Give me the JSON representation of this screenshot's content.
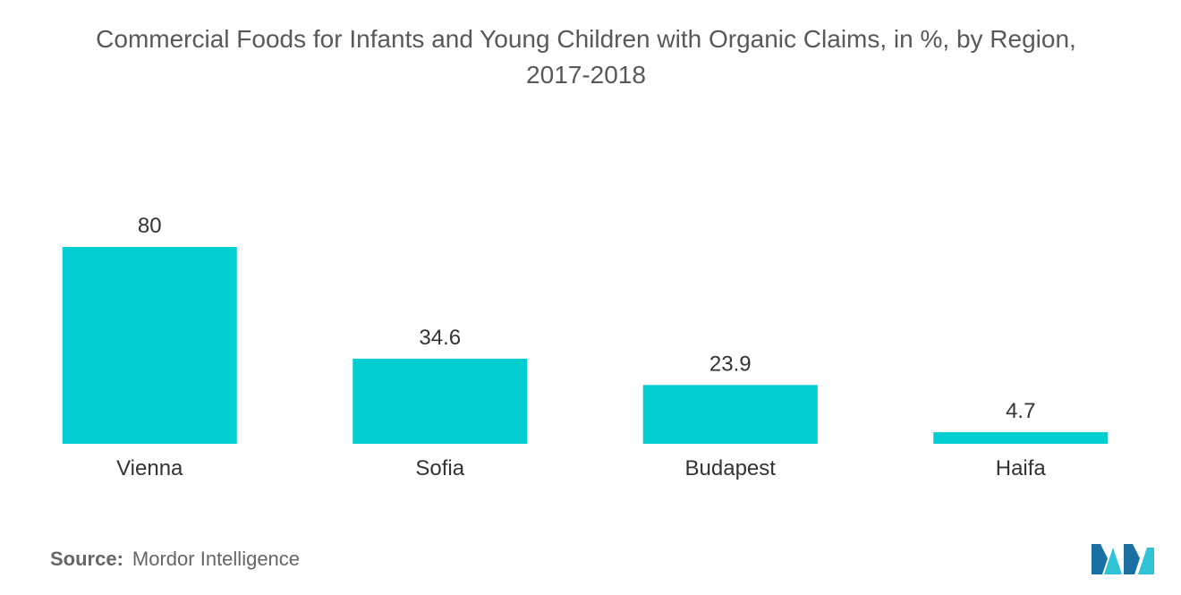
{
  "chart_title_line1": "Commercial Foods for Infants and Young Children with Organic Claims, in %, by Region,",
  "chart_title_line2": "2017-2018",
  "source_label": "Source:",
  "source_value": "Mordor Intelligence",
  "colors": {
    "bar": "#00CED1",
    "logo_dark": "#1A6FA3",
    "logo_light": "#2EC4D6"
  },
  "logo_icon": "mordor-intelligence-logo-icon",
  "chart_data": {
    "type": "bar",
    "categories": [
      "Vienna",
      "Sofia",
      "Budapest",
      "Haifa"
    ],
    "values": [
      80,
      34.6,
      23.9,
      4.7
    ],
    "value_labels": [
      "80",
      "34.6",
      "23.9",
      "4.7"
    ],
    "title": "Commercial Foods for Infants and Young Children with Organic Claims, in %, by Region, 2017-2018",
    "xlabel": "",
    "ylabel": "",
    "ylim": [
      0,
      80
    ],
    "grid": false,
    "legend": "none"
  }
}
